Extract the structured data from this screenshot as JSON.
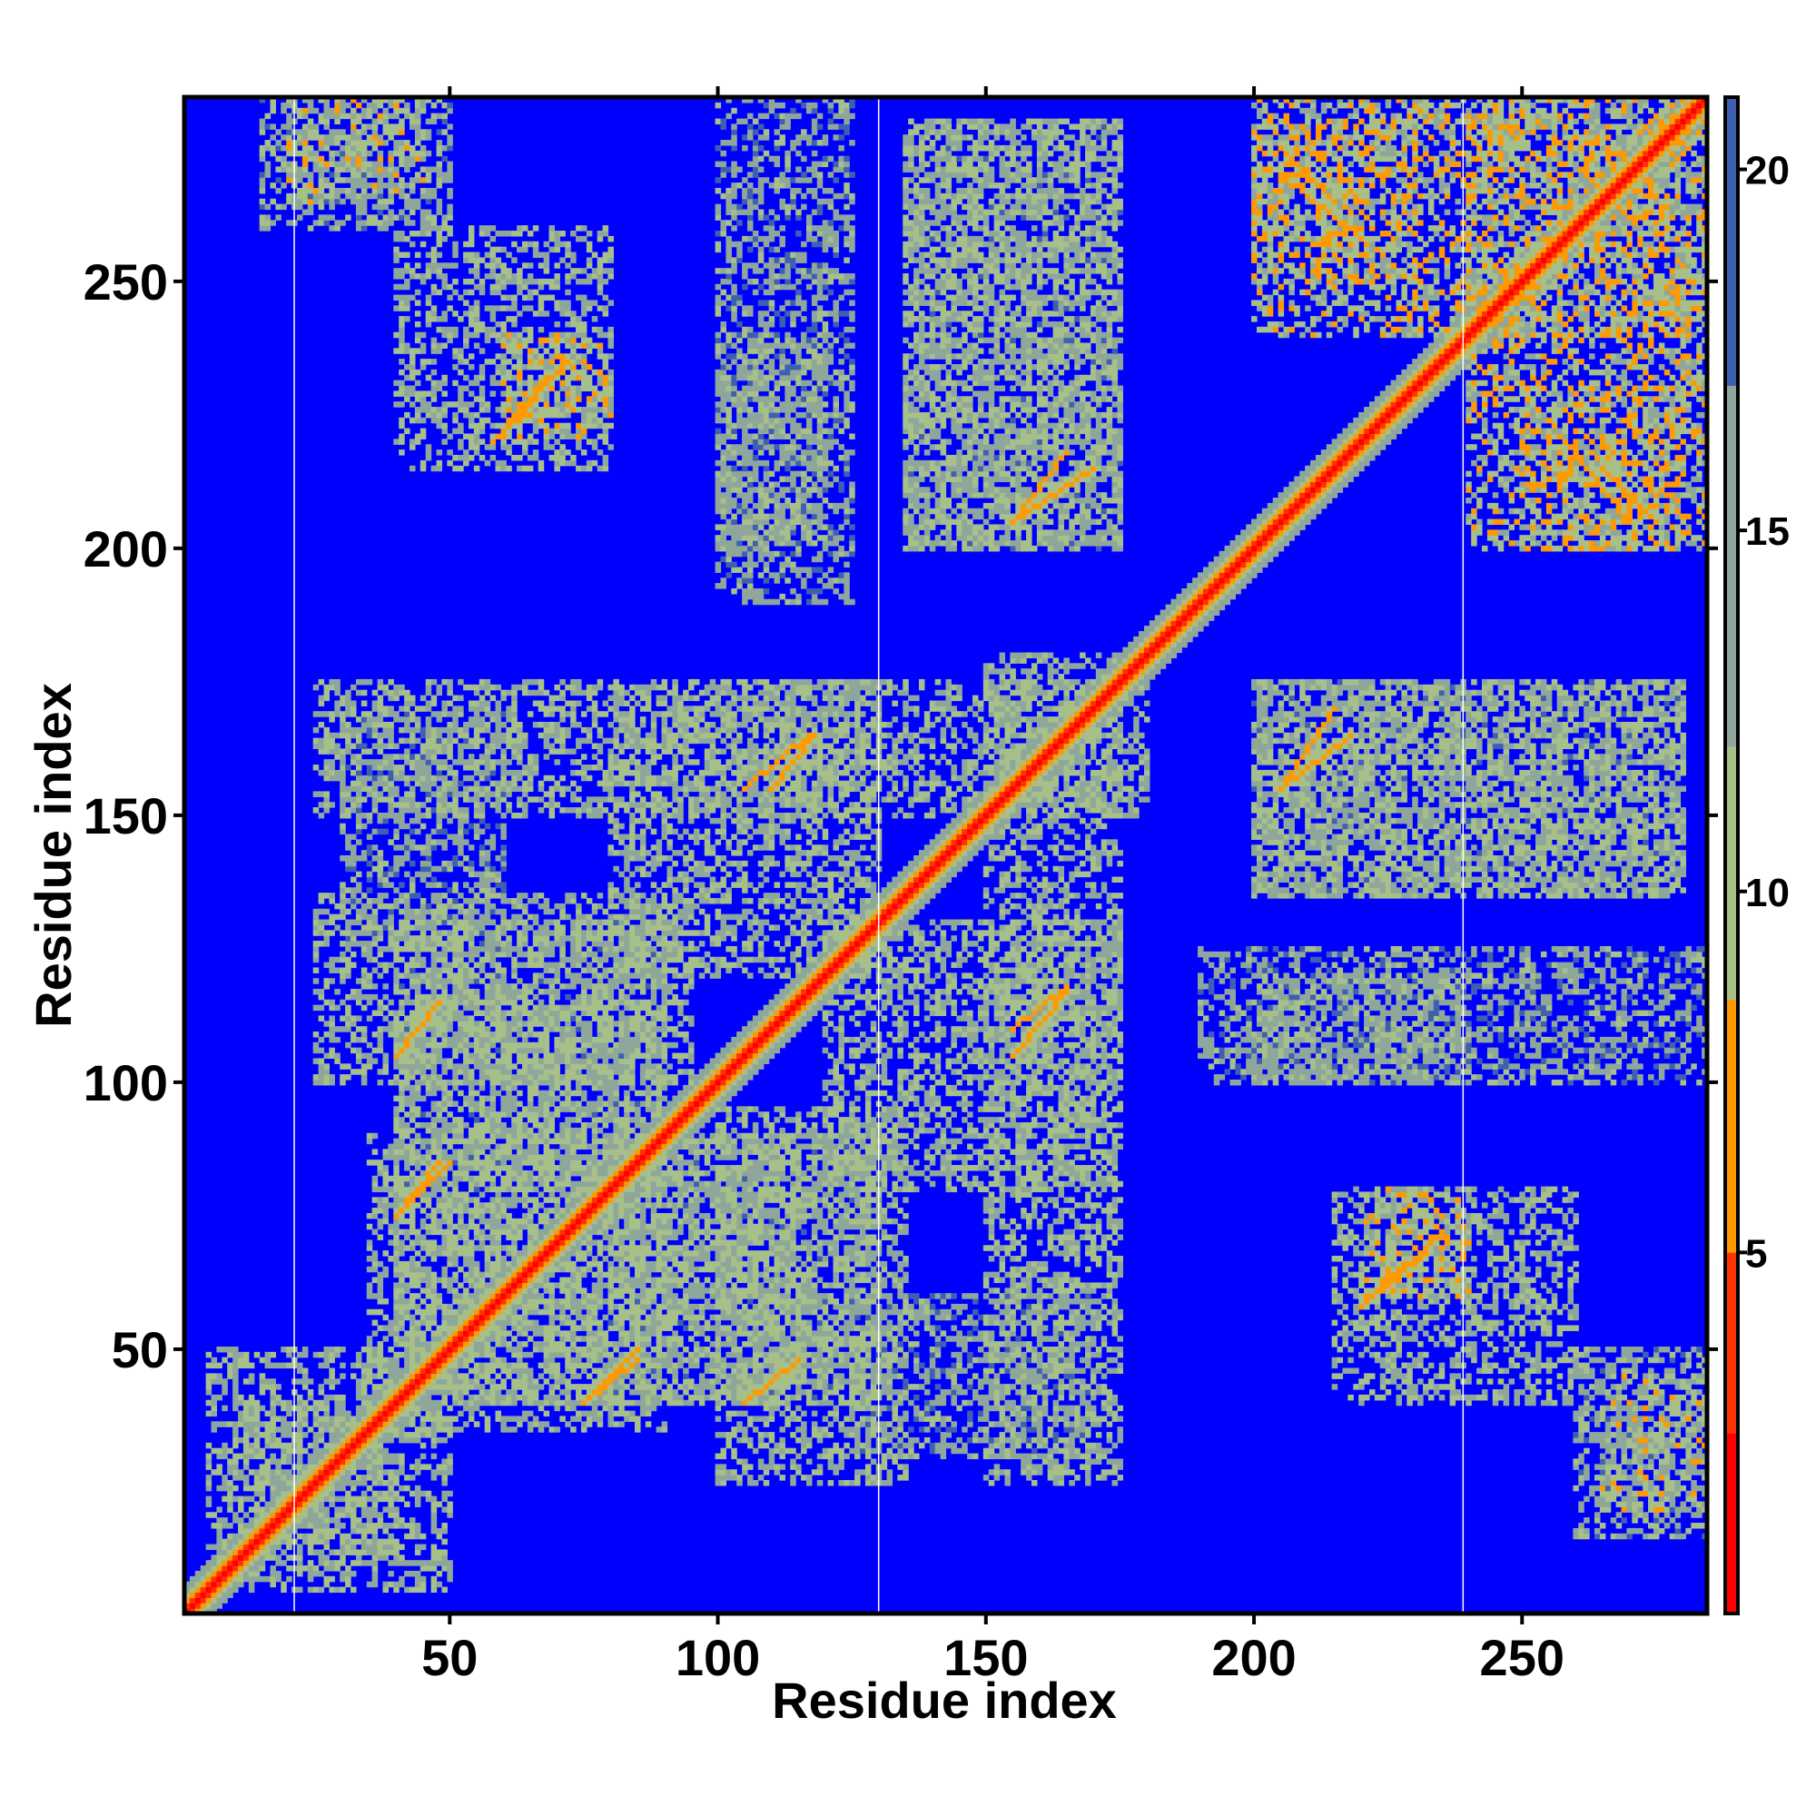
{
  "chart_data": {
    "type": "heatmap",
    "title": "",
    "xlabel": "Residue index",
    "ylabel": "Residue index",
    "xlim": [
      1,
      284
    ],
    "ylim": [
      1,
      284
    ],
    "x_ticks": [
      50,
      100,
      150,
      200,
      250
    ],
    "y_ticks": [
      50,
      100,
      150,
      200,
      250
    ],
    "n_residues": 284,
    "grid": false,
    "legend": "colorbar-right",
    "colorbar": {
      "ticks": [
        5,
        10,
        15,
        20
      ],
      "range": [
        0,
        21
      ],
      "segments": [
        {
          "from": 0,
          "to": 2.5,
          "color": "#ff0000"
        },
        {
          "from": 2.5,
          "to": 5,
          "color": "#ff3300"
        },
        {
          "from": 5,
          "to": 8.5,
          "color": "#ff9900"
        },
        {
          "from": 8.5,
          "to": 12,
          "color": "#a7c08a"
        },
        {
          "from": 12,
          "to": 17,
          "color": "#8fa79a"
        },
        {
          "from": 17,
          "to": 21,
          "color": "#3f5fb0"
        }
      ]
    },
    "background_value": 21,
    "background_color": "#0000ff",
    "white_gap_columns": [
      21,
      130,
      239
    ],
    "diagonal_band_halfwidth": 5,
    "contact_regions": [
      {
        "x": [
          20,
          45
        ],
        "y": [
          265,
          284
        ],
        "v": 10
      },
      {
        "x": [
          60,
          80
        ],
        "y": [
          220,
          240
        ],
        "v": 8
      },
      {
        "x": [
          100,
          120
        ],
        "y": [
          200,
          240
        ],
        "v": 12
      },
      {
        "x": [
          135,
          175
        ],
        "y": [
          200,
          280
        ],
        "v": 11
      },
      {
        "x": [
          200,
          230
        ],
        "y": [
          250,
          280
        ],
        "v": 9
      },
      {
        "x": [
          240,
          284
        ],
        "y": [
          200,
          284
        ],
        "v": 9
      },
      {
        "x": [
          25,
          180
        ],
        "y": [
          150,
          175
        ],
        "v": 11
      },
      {
        "x": [
          25,
          95
        ],
        "y": [
          100,
          135
        ],
        "v": 11
      },
      {
        "x": [
          35,
          115
        ],
        "y": [
          40,
          90
        ],
        "v": 11
      },
      {
        "x": [
          80,
          130
        ],
        "y": [
          40,
          90
        ],
        "v": 12
      },
      {
        "x": [
          120,
          175
        ],
        "y": [
          80,
          130
        ],
        "v": 11
      },
      {
        "x": [
          125,
          170
        ],
        "y": [
          30,
          60
        ],
        "v": 13
      },
      {
        "x": [
          200,
          280
        ],
        "y": [
          135,
          175
        ],
        "v": 12
      },
      {
        "x": [
          190,
          284
        ],
        "y": [
          100,
          125
        ],
        "v": 13
      },
      {
        "x": [
          215,
          260
        ],
        "y": [
          40,
          80
        ],
        "v": 11
      },
      {
        "x": [
          260,
          284
        ],
        "y": [
          15,
          50
        ],
        "v": 12
      },
      {
        "x": [
          5,
          40
        ],
        "y": [
          10,
          50
        ],
        "v": 11
      }
    ],
    "strand_pairs": [
      {
        "from": [
          40,
          105
        ],
        "to": [
          48,
          115
        ],
        "v": 6
      },
      {
        "from": [
          105,
          40
        ],
        "to": [
          115,
          48
        ],
        "v": 6
      },
      {
        "from": [
          155,
          105
        ],
        "to": [
          165,
          117
        ],
        "v": 6
      },
      {
        "from": [
          60,
          222
        ],
        "to": [
          72,
          235
        ],
        "v": 6
      },
      {
        "from": [
          205,
          270
        ],
        "to": [
          220,
          258
        ],
        "v": 6
      },
      {
        "from": [
          155,
          205
        ],
        "to": [
          170,
          215
        ],
        "v": 6
      },
      {
        "from": [
          205,
          155
        ],
        "to": [
          218,
          165
        ],
        "v": 6
      },
      {
        "from": [
          75,
          40
        ],
        "to": [
          85,
          50
        ],
        "v": 6
      },
      {
        "from": [
          110,
          155
        ],
        "to": [
          118,
          165
        ],
        "v": 6
      },
      {
        "from": [
          265,
          215
        ],
        "to": [
          275,
          205
        ],
        "v": 6
      },
      {
        "from": [
          220,
          58
        ],
        "to": [
          232,
          68
        ],
        "v": 7
      },
      {
        "from": [
          40,
          75
        ],
        "to": [
          48,
          85
        ],
        "v": 6
      }
    ]
  }
}
